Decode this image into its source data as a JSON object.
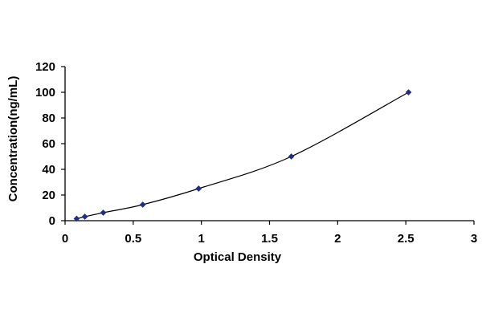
{
  "chart_data": {
    "type": "scatter",
    "title": "",
    "xlabel": "Optical Density",
    "ylabel": "Concentration(ng/mL)",
    "xlim": [
      0,
      3
    ],
    "ylim": [
      0,
      120
    ],
    "x_ticks": [
      "0",
      "0.5",
      "1",
      "1.5",
      "2",
      "2.5",
      "3"
    ],
    "y_ticks": [
      "0",
      "20",
      "40",
      "60",
      "80",
      "100",
      "120"
    ],
    "grid": false,
    "legend": "none",
    "marker": "diamond",
    "trendline": "smooth curve",
    "series_color": "#1f2d86",
    "series": [
      {
        "x": [
          0.085,
          0.145,
          0.28,
          0.57,
          0.98,
          1.66,
          2.52
        ],
        "y": [
          1.56,
          3.13,
          6.25,
          12.5,
          25,
          50,
          100
        ]
      }
    ]
  }
}
